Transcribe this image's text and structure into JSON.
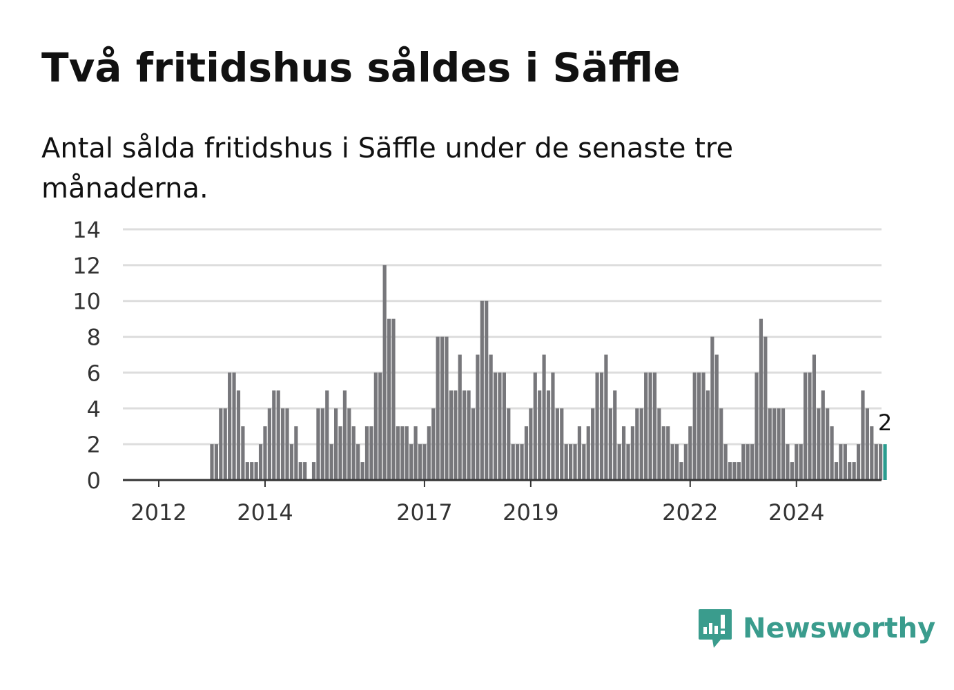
{
  "title": "Två fritidshus såldes i Säffle",
  "subtitle": "Antal sålda fritidshus i Säffle under de senaste tre månaderna.",
  "brand": {
    "name": "Newsworthy",
    "color": "#3a9c8d",
    "icon": "newsworthy-logo-icon"
  },
  "colors": {
    "bar": "#77777b",
    "highlight": "#2a9d8f",
    "grid": "#dddddd",
    "axis": "#333333"
  },
  "chart_data": {
    "type": "bar",
    "x_start": "2012-01",
    "frequency": "monthly",
    "ylim": [
      0,
      14
    ],
    "y_ticks": [
      0,
      2,
      4,
      6,
      8,
      10,
      12,
      14
    ],
    "x_ticks": [
      {
        "label": "2012",
        "date": "2012-01"
      },
      {
        "label": "2014",
        "date": "2014-01"
      },
      {
        "label": "2017",
        "date": "2017-01"
      },
      {
        "label": "2019",
        "date": "2019-01"
      },
      {
        "label": "2022",
        "date": "2022-01"
      },
      {
        "label": "2024",
        "date": "2024-01"
      }
    ],
    "values": [
      0,
      0,
      0,
      0,
      0,
      0,
      0,
      0,
      0,
      0,
      0,
      0,
      2,
      2,
      4,
      4,
      6,
      6,
      5,
      3,
      1,
      1,
      1,
      2,
      3,
      4,
      5,
      5,
      4,
      4,
      2,
      3,
      1,
      1,
      0,
      1,
      4,
      4,
      5,
      2,
      4,
      3,
      5,
      4,
      3,
      2,
      1,
      3,
      3,
      6,
      6,
      12,
      9,
      9,
      3,
      3,
      3,
      2,
      3,
      2,
      2,
      3,
      4,
      8,
      8,
      8,
      5,
      5,
      7,
      5,
      5,
      4,
      7,
      10,
      10,
      7,
      6,
      6,
      6,
      4,
      2,
      2,
      2,
      3,
      4,
      6,
      5,
      7,
      5,
      6,
      4,
      4,
      2,
      2,
      2,
      3,
      2,
      3,
      4,
      6,
      6,
      7,
      4,
      5,
      2,
      3,
      2,
      3,
      4,
      4,
      6,
      6,
      6,
      4,
      3,
      3,
      2,
      2,
      1,
      2,
      3,
      6,
      6,
      6,
      5,
      8,
      7,
      4,
      2,
      1,
      1,
      1,
      2,
      2,
      2,
      6,
      9,
      8,
      4,
      4,
      4,
      4,
      2,
      1,
      2,
      2,
      6,
      6,
      7,
      4,
      5,
      4,
      3,
      1,
      2,
      2,
      1,
      1,
      2,
      5,
      4,
      3,
      2,
      2,
      2
    ],
    "highlight_last": true,
    "last_value_label": "2"
  }
}
